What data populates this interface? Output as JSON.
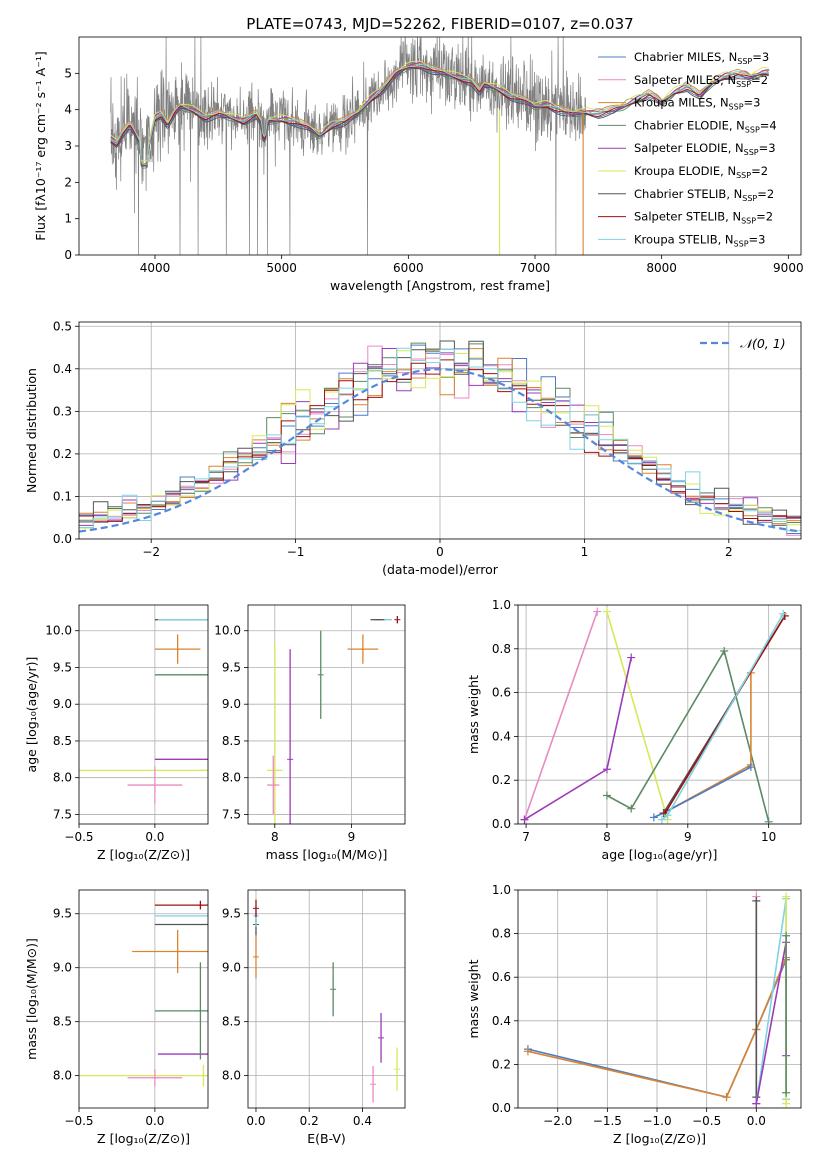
{
  "figure": {
    "title": "PLATE=0743, MJD=52262, FIBERID=0107, z=0.037"
  },
  "colors": {
    "Chabrier MILES": "#4c7cc4",
    "Salpeter MILES": "#e98ac2",
    "Kroupa MILES": "#d98432",
    "Chabrier ELODIE": "#5b8a64",
    "Salpeter ELODIE": "#9b3bb8",
    "Kroupa ELODIE": "#d8e858",
    "Chabrier STELIB": "#555555",
    "Salpeter STELIB": "#a01010",
    "Kroupa STELIB": "#7fd3e3",
    "data": "#808080",
    "gaussian": "#5588dd"
  },
  "chart_data": [
    {
      "id": "spectrum",
      "type": "line",
      "xlabel": "wavelength [Angstrom, rest frame]",
      "ylabel": "Flux [fλ10⁻¹⁷ erg cm⁻² s⁻¹ A⁻¹]",
      "xlim": [
        3400,
        9100
      ],
      "ylim": [
        0,
        6
      ],
      "xticks": [
        4000,
        5000,
        6000,
        7000,
        8000,
        9000
      ],
      "yticks": [
        0,
        1,
        2,
        3,
        4,
        5
      ],
      "grid": false,
      "legend_position": "upper-right",
      "legend": [
        {
          "label": "Chabrier MILES, N",
          "sub": "SSP",
          "sup": "=3"
        },
        {
          "label": "Salpeter MILES, N",
          "sub": "SSP",
          "sup": "=2"
        },
        {
          "label": "Kroupa MILES, N",
          "sub": "SSP",
          "sup": "=3"
        },
        {
          "label": "Chabrier ELODIE, N",
          "sub": "SSP",
          "sup": "=4"
        },
        {
          "label": "Salpeter ELODIE, N",
          "sub": "SSP",
          "sup": "=3"
        },
        {
          "label": "Kroupa ELODIE, N",
          "sub": "SSP",
          "sup": "=2"
        },
        {
          "label": "Chabrier STELIB, N",
          "sub": "SSP",
          "sup": "=2"
        },
        {
          "label": "Salpeter STELIB, N",
          "sub": "SSP",
          "sup": "=2"
        },
        {
          "label": "Kroupa STELIB, N",
          "sub": "SSP",
          "sup": "=3"
        }
      ],
      "continuum": {
        "x": [
          3650,
          3700,
          3750,
          3800,
          3850,
          3900,
          3950,
          4000,
          4050,
          4100,
          4150,
          4200,
          4300,
          4400,
          4500,
          4600,
          4700,
          4800,
          4862,
          4900,
          5000,
          5100,
          5200,
          5300,
          5400,
          5500,
          5600,
          5700,
          5800,
          5900,
          6000,
          6100,
          6200,
          6300,
          6400,
          6500,
          6563,
          6600,
          6700,
          6800,
          6900,
          7000,
          7100,
          7200,
          7300,
          7400,
          7500,
          7600,
          7700,
          7800,
          7900,
          8000,
          8100,
          8200,
          8300,
          8400,
          8500,
          8600,
          8700,
          8800,
          8900
        ],
        "y": [
          3.2,
          3.1,
          3.4,
          3.6,
          3.3,
          3.0,
          3.0,
          3.8,
          3.9,
          3.6,
          3.9,
          4.1,
          4.0,
          3.8,
          3.9,
          3.8,
          3.7,
          3.9,
          3.5,
          3.7,
          3.75,
          3.7,
          3.55,
          3.3,
          3.6,
          3.7,
          3.9,
          4.3,
          4.6,
          5.0,
          5.2,
          5.25,
          5.1,
          5.0,
          4.9,
          4.8,
          4.5,
          4.7,
          4.6,
          4.4,
          4.3,
          4.1,
          4.15,
          4.0,
          3.9,
          3.95,
          3.9,
          4.0,
          4.1,
          4.3,
          4.45,
          4.2,
          4.5,
          4.65,
          4.4,
          4.75,
          4.95,
          5.0,
          4.9,
          5.05,
          5.05
        ]
      }
    },
    {
      "id": "residuals",
      "type": "bar",
      "xlabel": "(data-model)/error",
      "ylabel": "Normed distribution",
      "xlim": [
        -2.5,
        2.5
      ],
      "ylim": [
        0,
        0.51
      ],
      "xticks": [
        -2,
        -1,
        0,
        1,
        2
      ],
      "yticks": [
        0.0,
        0.1,
        0.2,
        0.3,
        0.4,
        0.5
      ],
      "grid": true,
      "legend_position": "upper-right",
      "legend_label": "𝒩(0, 1)",
      "bin_width": 0.1
    },
    {
      "id": "age_vs_z",
      "type": "scatter",
      "xlabel": "Z [log₁₀(Z/Z⊙)]",
      "ylabel": "age  [log₁₀(age/yr)]",
      "xlim": [
        -0.5,
        0.35
      ],
      "ylim": [
        7.37,
        10.35
      ],
      "xticks": [
        -0.5,
        0.0
      ],
      "yticks": [
        7.5,
        8.0,
        8.5,
        9.0,
        9.5,
        10.0
      ],
      "grid": true,
      "points": [
        {
          "model": "Kroupa ELODIE",
          "x": 0.32,
          "y": 8.1,
          "xerr": 0.85,
          "yerr": 0.0
        },
        {
          "model": "Salpeter MILES",
          "x": 0.0,
          "y": 7.9,
          "xerr": 0.18,
          "yerr": 0.25
        },
        {
          "model": "Salpeter ELODIE",
          "x": 0.28,
          "y": 8.25,
          "xerr": 0.28,
          "yerr": 0.0
        },
        {
          "model": "Chabrier ELODIE",
          "x": 0.3,
          "y": 9.4,
          "xerr": 0.3,
          "yerr": 0.0
        },
        {
          "model": "Kroupa MILES",
          "x": 0.15,
          "y": 9.75,
          "xerr": 0.15,
          "yerr": 0.2
        },
        {
          "model": "Chabrier STELIB",
          "x": 0.3,
          "y": 10.15,
          "xerr": 0.3,
          "yerr": 0.0
        },
        {
          "model": "Kroupa STELIB",
          "x": 0.3,
          "y": 10.15,
          "xerr": 0.28,
          "yerr": 0.0
        }
      ]
    },
    {
      "id": "age_vs_mass",
      "type": "scatter",
      "xlabel": "mass [log₁₀(M/M⊙)]",
      "ylabel": "",
      "xlim": [
        7.65,
        9.7
      ],
      "ylim": [
        7.37,
        10.35
      ],
      "xticks": [
        8,
        9
      ],
      "yticks": [
        7.5,
        8.0,
        8.5,
        9.0,
        9.5,
        10.0
      ],
      "grid": true,
      "points": [
        {
          "model": "Kroupa ELODIE",
          "x": 8.0,
          "y": 8.1,
          "xerr": 0.1,
          "yerr": 1.75
        },
        {
          "model": "Salpeter MILES",
          "x": 7.98,
          "y": 7.9,
          "xerr": 0.08,
          "yerr": 0.4
        },
        {
          "model": "Salpeter ELODIE",
          "x": 8.2,
          "y": 8.25,
          "xerr": 0.0,
          "yerr": 1.5
        },
        {
          "model": "Chabrier ELODIE",
          "x": 8.6,
          "y": 9.4,
          "xerr": 0.0,
          "yerr": 0.6
        },
        {
          "model": "Kroupa MILES",
          "x": 9.15,
          "y": 9.75,
          "xerr": 0.2,
          "yerr": 0.2
        },
        {
          "model": "Chabrier STELIB",
          "x": 9.35,
          "y": 10.15,
          "xerr": 0.1,
          "yerr": 0.0
        },
        {
          "model": "Kroupa STELIB",
          "x": 9.48,
          "y": 10.15,
          "xerr": 0.05,
          "yerr": 0.0
        },
        {
          "model": "Salpeter STELIB",
          "x": 9.6,
          "y": 10.15,
          "xerr": 0.0,
          "yerr": 0.05
        }
      ]
    },
    {
      "id": "weight_vs_age",
      "type": "line",
      "xlabel": "age  [log₁₀(age/yr)]",
      "ylabel": "mass weight",
      "xlim": [
        6.9,
        10.4
      ],
      "ylim": [
        0,
        1
      ],
      "xticks": [
        7,
        8,
        9,
        10
      ],
      "yticks": [
        0.0,
        0.2,
        0.4,
        0.6,
        0.8,
        1.0
      ],
      "grid": true,
      "series": [
        {
          "model": "Salpeter MILES",
          "x": [
            6.98,
            7.88
          ],
          "y": [
            0.02,
            0.97
          ]
        },
        {
          "model": "Kroupa ELODIE",
          "x": [
            8.0,
            8.75
          ],
          "y": [
            0.97,
            0.02
          ]
        },
        {
          "model": "Salpeter ELODIE",
          "x": [
            6.98,
            8.0,
            8.3
          ],
          "y": [
            0.02,
            0.25,
            0.76
          ]
        },
        {
          "model": "Chabrier ELODIE",
          "x": [
            8.0,
            8.3,
            9.45,
            10.0
          ],
          "y": [
            0.13,
            0.07,
            0.79,
            0.01
          ]
        },
        {
          "model": "Kroupa MILES",
          "x": [
            8.7,
            9.78,
            9.78
          ],
          "y": [
            0.05,
            0.27,
            0.69
          ]
        },
        {
          "model": "Chabrier MILES",
          "x": [
            8.58,
            8.7,
            9.78
          ],
          "y": [
            0.03,
            0.05,
            0.26
          ]
        },
        {
          "model": "Chabrier STELIB",
          "x": [
            8.7,
            10.2
          ],
          "y": [
            0.05,
            0.95
          ]
        },
        {
          "model": "Salpeter STELIB",
          "x": [
            8.72,
            10.2
          ],
          "y": [
            0.05,
            0.95
          ]
        },
        {
          "model": "Kroupa STELIB",
          "x": [
            8.68,
            8.75,
            10.18
          ],
          "y": [
            0.02,
            0.04,
            0.96
          ]
        }
      ]
    },
    {
      "id": "mass_vs_z",
      "type": "scatter",
      "xlabel": "Z [log₁₀(Z/Z⊙)]",
      "ylabel": "mass [log₁₀(M/M⊙)]",
      "xlim": [
        -0.5,
        0.35
      ],
      "ylim": [
        7.7,
        9.72
      ],
      "xticks": [
        -0.5,
        0.0
      ],
      "yticks": [
        8.0,
        8.5,
        9.0,
        9.5
      ],
      "grid": true,
      "points": [
        {
          "model": "Kroupa ELODIE",
          "x": 0.32,
          "y": 8.0,
          "xerr": 0.85,
          "yerr": 0.1
        },
        {
          "model": "Salpeter MILES",
          "x": 0.0,
          "y": 7.98,
          "xerr": 0.18,
          "yerr": 0.08
        },
        {
          "model": "Salpeter ELODIE",
          "x": 0.3,
          "y": 8.2,
          "xerr": 0.28,
          "yerr": 0.0
        },
        {
          "model": "Chabrier ELODIE",
          "x": 0.3,
          "y": 8.6,
          "xerr": 0.3,
          "yerr": 0.45
        },
        {
          "model": "Kroupa MILES",
          "x": 0.15,
          "y": 9.15,
          "xerr": 0.3,
          "yerr": 0.2
        },
        {
          "model": "Chabrier STELIB",
          "x": 0.3,
          "y": 9.4,
          "xerr": 0.3,
          "yerr": 0.0
        },
        {
          "model": "Kroupa STELIB",
          "x": 0.3,
          "y": 9.48,
          "xerr": 0.3,
          "yerr": 0.0
        },
        {
          "model": "Salpeter STELIB",
          "x": 0.3,
          "y": 9.58,
          "xerr": 0.3,
          "yerr": 0.04
        }
      ]
    },
    {
      "id": "mass_vs_ebv",
      "type": "scatter",
      "xlabel": "E(B-V)",
      "ylabel": "",
      "xlim": [
        -0.03,
        0.56
      ],
      "ylim": [
        7.7,
        9.72
      ],
      "xticks": [
        0.0,
        0.2,
        0.4
      ],
      "yticks": [
        8.0,
        8.5,
        9.0,
        9.5
      ],
      "grid": true,
      "points": [
        {
          "model": "Kroupa ELODIE",
          "x": 0.53,
          "y": 8.06,
          "xerr": 0.0,
          "yerr": 0.2
        },
        {
          "model": "Salpeter MILES",
          "x": 0.44,
          "y": 7.92,
          "xerr": 0.0,
          "yerr": 0.17
        },
        {
          "model": "Salpeter ELODIE",
          "x": 0.47,
          "y": 8.35,
          "xerr": 0.0,
          "yerr": 0.23
        },
        {
          "model": "Chabrier ELODIE",
          "x": 0.29,
          "y": 8.8,
          "xerr": 0.0,
          "yerr": 0.25
        },
        {
          "model": "Kroupa MILES",
          "x": 0.0,
          "y": 9.1,
          "xerr": 0.0,
          "yerr": 0.2
        },
        {
          "model": "Chabrier STELIB",
          "x": 0.0,
          "y": 9.4,
          "xerr": 0.0,
          "yerr": 0.1
        },
        {
          "model": "Kroupa STELIB",
          "x": 0.0,
          "y": 9.48,
          "xerr": 0.0,
          "yerr": 0.1
        },
        {
          "model": "Salpeter STELIB",
          "x": 0.0,
          "y": 9.55,
          "xerr": 0.0,
          "yerr": 0.08
        }
      ]
    },
    {
      "id": "weight_vs_z",
      "type": "line",
      "xlabel": "Z [log₁₀(Z/Z⊙)]",
      "ylabel": "mass weight",
      "xlim": [
        -2.4,
        0.45
      ],
      "ylim": [
        0,
        1
      ],
      "xticks": [
        -2.0,
        -1.5,
        -1.0,
        -0.5,
        0.0
      ],
      "yticks": [
        0.0,
        0.2,
        0.4,
        0.6,
        0.8,
        1.0
      ],
      "grid": true,
      "series": [
        {
          "model": "Chabrier MILES",
          "x": [
            -2.3,
            -0.3,
            0.0,
            0.3
          ],
          "y": [
            0.27,
            0.05,
            0.36,
            0.68
          ]
        },
        {
          "model": "Kroupa MILES",
          "x": [
            -2.3,
            -0.3,
            0.0,
            0.3
          ],
          "y": [
            0.26,
            0.05,
            0.36,
            0.69
          ]
        },
        {
          "model": "Salpeter MILES",
          "x": [
            0.0,
            0.0
          ],
          "y": [
            0.02,
            0.97
          ]
        },
        {
          "model": "Chabrier STELIB",
          "x": [
            0.0,
            0.0
          ],
          "y": [
            0.05,
            0.95
          ]
        },
        {
          "model": "Kroupa STELIB",
          "x": [
            0.0,
            0.3,
            0.3
          ],
          "y": [
            0.02,
            0.96,
            0.04
          ]
        },
        {
          "model": "Salpeter ELODIE",
          "x": [
            0.0,
            0.3,
            0.3
          ],
          "y": [
            0.02,
            0.76,
            0.24
          ]
        },
        {
          "model": "Kroupa ELODIE",
          "x": [
            0.3,
            0.3
          ],
          "y": [
            0.02,
            0.97
          ]
        },
        {
          "model": "Chabrier ELODIE",
          "x": [
            0.3,
            0.3
          ],
          "y": [
            0.07,
            0.79
          ]
        }
      ]
    }
  ]
}
